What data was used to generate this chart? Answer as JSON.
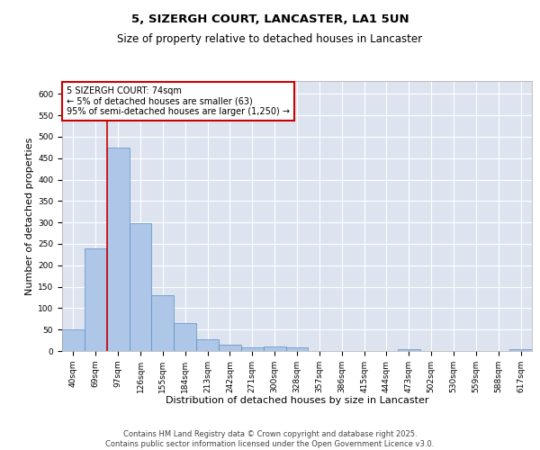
{
  "title_line1": "5, SIZERGH COURT, LANCASTER, LA1 5UN",
  "title_line2": "Size of property relative to detached houses in Lancaster",
  "xlabel": "Distribution of detached houses by size in Lancaster",
  "ylabel": "Number of detached properties",
  "categories": [
    "40sqm",
    "69sqm",
    "97sqm",
    "126sqm",
    "155sqm",
    "184sqm",
    "213sqm",
    "242sqm",
    "271sqm",
    "300sqm",
    "328sqm",
    "357sqm",
    "386sqm",
    "415sqm",
    "444sqm",
    "473sqm",
    "502sqm",
    "530sqm",
    "559sqm",
    "588sqm",
    "617sqm"
  ],
  "values": [
    50,
    240,
    475,
    298,
    130,
    65,
    28,
    15,
    8,
    10,
    8,
    0,
    0,
    0,
    0,
    5,
    0,
    0,
    0,
    0,
    5
  ],
  "bar_color": "#aec6e8",
  "bar_edge_color": "#5a8fc2",
  "red_line_x": 1.5,
  "annotation_text": "5 SIZERGH COURT: 74sqm\n← 5% of detached houses are smaller (63)\n95% of semi-detached houses are larger (1,250) →",
  "annotation_box_color": "#ffffff",
  "annotation_border_color": "#cc0000",
  "ylim": [
    0,
    630
  ],
  "yticks": [
    0,
    50,
    100,
    150,
    200,
    250,
    300,
    350,
    400,
    450,
    500,
    550,
    600
  ],
  "background_color": "#dde4f0",
  "grid_color": "#ffffff",
  "footer_line1": "Contains HM Land Registry data © Crown copyright and database right 2025.",
  "footer_line2": "Contains public sector information licensed under the Open Government Licence v3.0.",
  "title_fontsize": 9.5,
  "subtitle_fontsize": 8.5,
  "tick_fontsize": 6.5,
  "ylabel_fontsize": 8,
  "xlabel_fontsize": 8,
  "annotation_fontsize": 7,
  "footer_fontsize": 6
}
